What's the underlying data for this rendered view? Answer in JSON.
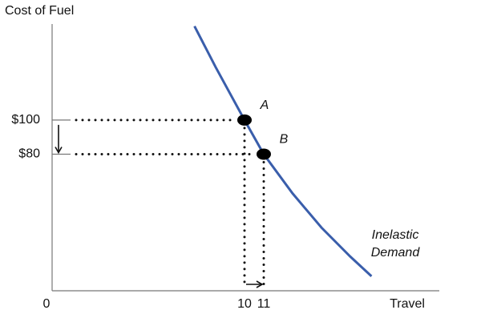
{
  "chart_data": {
    "type": "line",
    "ylabel": "Cost of Fuel",
    "xlabel": "Travel",
    "xlim": [
      0,
      20
    ],
    "ylim": [
      0,
      160
    ],
    "xticks": [
      0,
      10,
      11
    ],
    "yticks": [
      {
        "value": 100,
        "label": "$100"
      },
      {
        "value": 80,
        "label": "$80"
      }
    ],
    "series": [
      {
        "color": "#3a5eab",
        "x": [
          7.4,
          8.5,
          10,
          11,
          12.5,
          14,
          15.5,
          16.6
        ],
        "values": [
          155,
          131,
          100,
          80,
          57,
          37,
          20,
          8.5
        ]
      }
    ],
    "curve_label": [
      "Inelastic",
      "Demand"
    ],
    "points": [
      {
        "label": "A",
        "x": 10,
        "y": 100
      },
      {
        "label": "B",
        "x": 11,
        "y": 80
      }
    ]
  }
}
